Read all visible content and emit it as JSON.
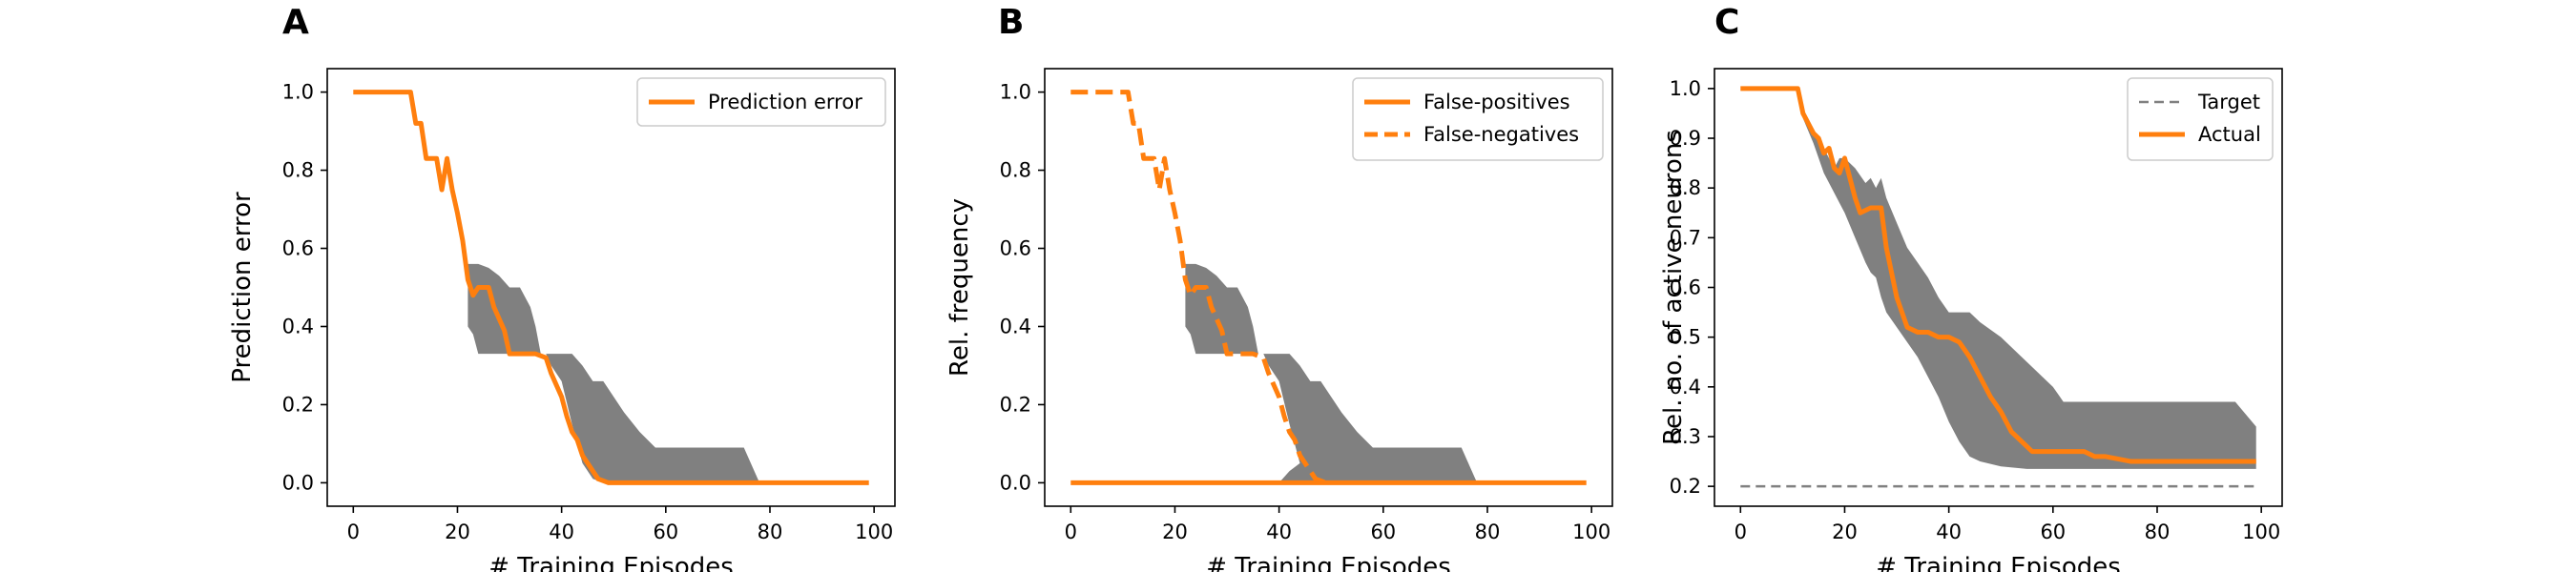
{
  "panels": [
    {
      "letter": "A",
      "xlabel": "# Training Episodes",
      "ylabel": "Prediction error",
      "legend": [
        "Prediction error"
      ]
    },
    {
      "letter": "B",
      "xlabel": "# Training Episodes",
      "ylabel": "Rel. frequency",
      "legend": [
        "False-positives",
        "False-negatives"
      ]
    },
    {
      "letter": "C",
      "xlabel": "# Training Episodes",
      "ylabel": "Rel. no. of active neurons",
      "legend": [
        "Target",
        "Actual"
      ]
    }
  ],
  "colors": {
    "orange": "#ff7f0e",
    "band": "#808080",
    "target": "#808080"
  },
  "chart_data": [
    {
      "type": "line",
      "title": "",
      "xlabel": "# Training Episodes",
      "ylabel": "Prediction error",
      "xlim": [
        -5,
        104
      ],
      "ylim": [
        -0.06,
        1.06
      ],
      "xticks": [
        0,
        20,
        40,
        60,
        80,
        100
      ],
      "yticks": [
        0.0,
        0.2,
        0.4,
        0.6,
        0.8,
        1.0
      ],
      "legend_loc": "upper right",
      "series": [
        {
          "name": "Prediction error",
          "style": "solid",
          "x": [
            0,
            11,
            12,
            13,
            14,
            16,
            17,
            18,
            19,
            20,
            21,
            22,
            23,
            24,
            26,
            27,
            29,
            30,
            35,
            37,
            38,
            40,
            41,
            42,
            43,
            44,
            45,
            46,
            47,
            49,
            99
          ],
          "y": [
            1.0,
            1.0,
            0.92,
            0.92,
            0.83,
            0.83,
            0.75,
            0.83,
            0.75,
            0.69,
            0.62,
            0.52,
            0.48,
            0.5,
            0.5,
            0.45,
            0.39,
            0.33,
            0.33,
            0.32,
            0.28,
            0.22,
            0.17,
            0.13,
            0.11,
            0.07,
            0.05,
            0.03,
            0.01,
            0.0,
            0.0
          ]
        }
      ],
      "bands": [
        {
          "x": [
            22,
            23,
            24,
            26,
            28,
            30,
            31,
            32,
            34,
            35,
            36,
            37,
            38,
            40,
            42,
            44,
            46,
            48,
            50,
            52,
            55,
            58,
            60,
            62,
            70,
            75,
            77,
            78,
            99
          ],
          "upper": [
            0.56,
            0.56,
            0.56,
            0.55,
            0.53,
            0.5,
            0.5,
            0.5,
            0.45,
            0.4,
            0.33,
            0.33,
            0.33,
            0.33,
            0.33,
            0.3,
            0.26,
            0.26,
            0.22,
            0.18,
            0.13,
            0.09,
            0.09,
            0.09,
            0.09,
            0.09,
            0.03,
            0.0,
            0.0
          ],
          "lower": [
            0.4,
            0.38,
            0.33,
            0.33,
            0.33,
            0.33,
            0.33,
            0.33,
            0.33,
            0.33,
            0.33,
            0.33,
            0.3,
            0.26,
            0.15,
            0.05,
            0.01,
            0.0,
            0.0,
            0.0,
            0.0,
            0.0,
            0.0,
            0.0,
            0.0,
            0.0,
            0.0,
            0.0,
            0.0
          ]
        }
      ]
    },
    {
      "type": "line",
      "title": "",
      "xlabel": "# Training Episodes",
      "ylabel": "Rel. frequency",
      "xlim": [
        -5,
        104
      ],
      "ylim": [
        -0.06,
        1.06
      ],
      "xticks": [
        0,
        20,
        40,
        60,
        80,
        100
      ],
      "yticks": [
        0.0,
        0.2,
        0.4,
        0.6,
        0.8,
        1.0
      ],
      "legend_loc": "upper right",
      "series": [
        {
          "name": "False-positives",
          "style": "solid",
          "x": [
            0,
            99
          ],
          "y": [
            0.0,
            0.0
          ]
        },
        {
          "name": "False-negatives",
          "style": "dashed",
          "x": [
            0,
            11,
            12,
            13,
            14,
            16,
            17,
            18,
            19,
            20,
            21,
            22,
            23,
            24,
            26,
            27,
            29,
            30,
            35,
            37,
            38,
            40,
            41,
            42,
            43,
            44,
            45,
            46,
            47,
            49
          ],
          "y": [
            1.0,
            1.0,
            0.92,
            0.92,
            0.83,
            0.83,
            0.75,
            0.83,
            0.75,
            0.69,
            0.62,
            0.52,
            0.48,
            0.5,
            0.5,
            0.45,
            0.39,
            0.33,
            0.33,
            0.32,
            0.28,
            0.22,
            0.17,
            0.13,
            0.11,
            0.07,
            0.05,
            0.03,
            0.01,
            0.0
          ]
        }
      ],
      "bands": [
        {
          "x": [
            22,
            23,
            24,
            26,
            28,
            30,
            31,
            32,
            34,
            35,
            36,
            37,
            38,
            40,
            42,
            44,
            46,
            48,
            50,
            52,
            55,
            58,
            60,
            62,
            70,
            75,
            77,
            78,
            99
          ],
          "upper": [
            0.56,
            0.56,
            0.56,
            0.55,
            0.53,
            0.5,
            0.5,
            0.5,
            0.45,
            0.4,
            0.33,
            0.33,
            0.33,
            0.33,
            0.33,
            0.3,
            0.26,
            0.26,
            0.22,
            0.18,
            0.13,
            0.09,
            0.09,
            0.09,
            0.09,
            0.09,
            0.03,
            0.0,
            0.0
          ],
          "lower": [
            0.4,
            0.38,
            0.33,
            0.33,
            0.33,
            0.33,
            0.33,
            0.33,
            0.33,
            0.33,
            0.33,
            0.33,
            0.3,
            0.26,
            0.15,
            0.05,
            0.01,
            0.0,
            0.0,
            0.0,
            0.0,
            0.0,
            0.0,
            0.0,
            0.0,
            0.0,
            0.0,
            0.0,
            0.0
          ]
        },
        {
          "x": [
            40,
            42,
            44,
            46,
            48,
            50,
            52,
            54,
            56,
            58,
            60,
            70,
            75,
            77,
            78
          ],
          "upper": [
            0.0,
            0.03,
            0.05,
            0.05,
            0.05,
            0.07,
            0.06,
            0.03,
            0.04,
            0.09,
            0.09,
            0.09,
            0.09,
            0.03,
            0.0
          ],
          "lower": [
            0.0,
            0.0,
            0.0,
            0.0,
            0.0,
            0.0,
            0.0,
            0.0,
            0.0,
            0.0,
            0.0,
            0.0,
            0.0,
            0.0,
            0.0
          ]
        }
      ]
    },
    {
      "type": "line",
      "title": "",
      "xlabel": "# Training Episodes",
      "ylabel": "Rel. no. of active neurons",
      "xlim": [
        -5,
        104
      ],
      "ylim": [
        0.16,
        1.04
      ],
      "xticks": [
        0,
        20,
        40,
        60,
        80,
        100
      ],
      "yticks": [
        0.2,
        0.3,
        0.4,
        0.5,
        0.6,
        0.7,
        0.8,
        0.9,
        1.0
      ],
      "legend_loc": "upper right",
      "series": [
        {
          "name": "Target",
          "style": "dashed",
          "x": [
            0,
            99
          ],
          "y": [
            0.2,
            0.2
          ]
        },
        {
          "name": "Actual",
          "style": "solid",
          "x": [
            0,
            11,
            12,
            13,
            14,
            15,
            16,
            17,
            18,
            19,
            20,
            21,
            22,
            23,
            25,
            27,
            28,
            30,
            32,
            34,
            36,
            38,
            40,
            42,
            44,
            46,
            48,
            50,
            52,
            54,
            56,
            58,
            60,
            62,
            66,
            68,
            70,
            75,
            99
          ],
          "y": [
            1.0,
            1.0,
            0.95,
            0.93,
            0.91,
            0.9,
            0.87,
            0.88,
            0.84,
            0.83,
            0.86,
            0.82,
            0.78,
            0.75,
            0.76,
            0.76,
            0.68,
            0.58,
            0.52,
            0.51,
            0.51,
            0.5,
            0.5,
            0.49,
            0.46,
            0.42,
            0.38,
            0.35,
            0.31,
            0.29,
            0.27,
            0.27,
            0.27,
            0.27,
            0.27,
            0.26,
            0.26,
            0.25,
            0.25
          ]
        }
      ],
      "bands": [
        {
          "x": [
            11,
            12,
            14,
            16,
            18,
            19,
            20,
            22,
            24,
            25,
            26,
            27,
            28,
            30,
            32,
            34,
            36,
            38,
            40,
            42,
            44,
            46,
            50,
            55,
            60,
            62,
            65,
            70,
            75,
            90,
            95,
            99
          ],
          "upper": [
            1.0,
            0.96,
            0.92,
            0.88,
            0.84,
            0.86,
            0.86,
            0.84,
            0.81,
            0.82,
            0.8,
            0.82,
            0.78,
            0.73,
            0.68,
            0.65,
            0.62,
            0.58,
            0.55,
            0.55,
            0.55,
            0.53,
            0.5,
            0.45,
            0.4,
            0.37,
            0.37,
            0.37,
            0.37,
            0.37,
            0.37,
            0.32
          ],
          "lower": [
            1.0,
            0.94,
            0.89,
            0.83,
            0.79,
            0.77,
            0.75,
            0.7,
            0.65,
            0.63,
            0.62,
            0.58,
            0.55,
            0.52,
            0.49,
            0.46,
            0.42,
            0.38,
            0.33,
            0.29,
            0.26,
            0.25,
            0.24,
            0.235,
            0.235,
            0.235,
            0.235,
            0.235,
            0.235,
            0.235,
            0.235,
            0.235
          ]
        }
      ]
    }
  ]
}
